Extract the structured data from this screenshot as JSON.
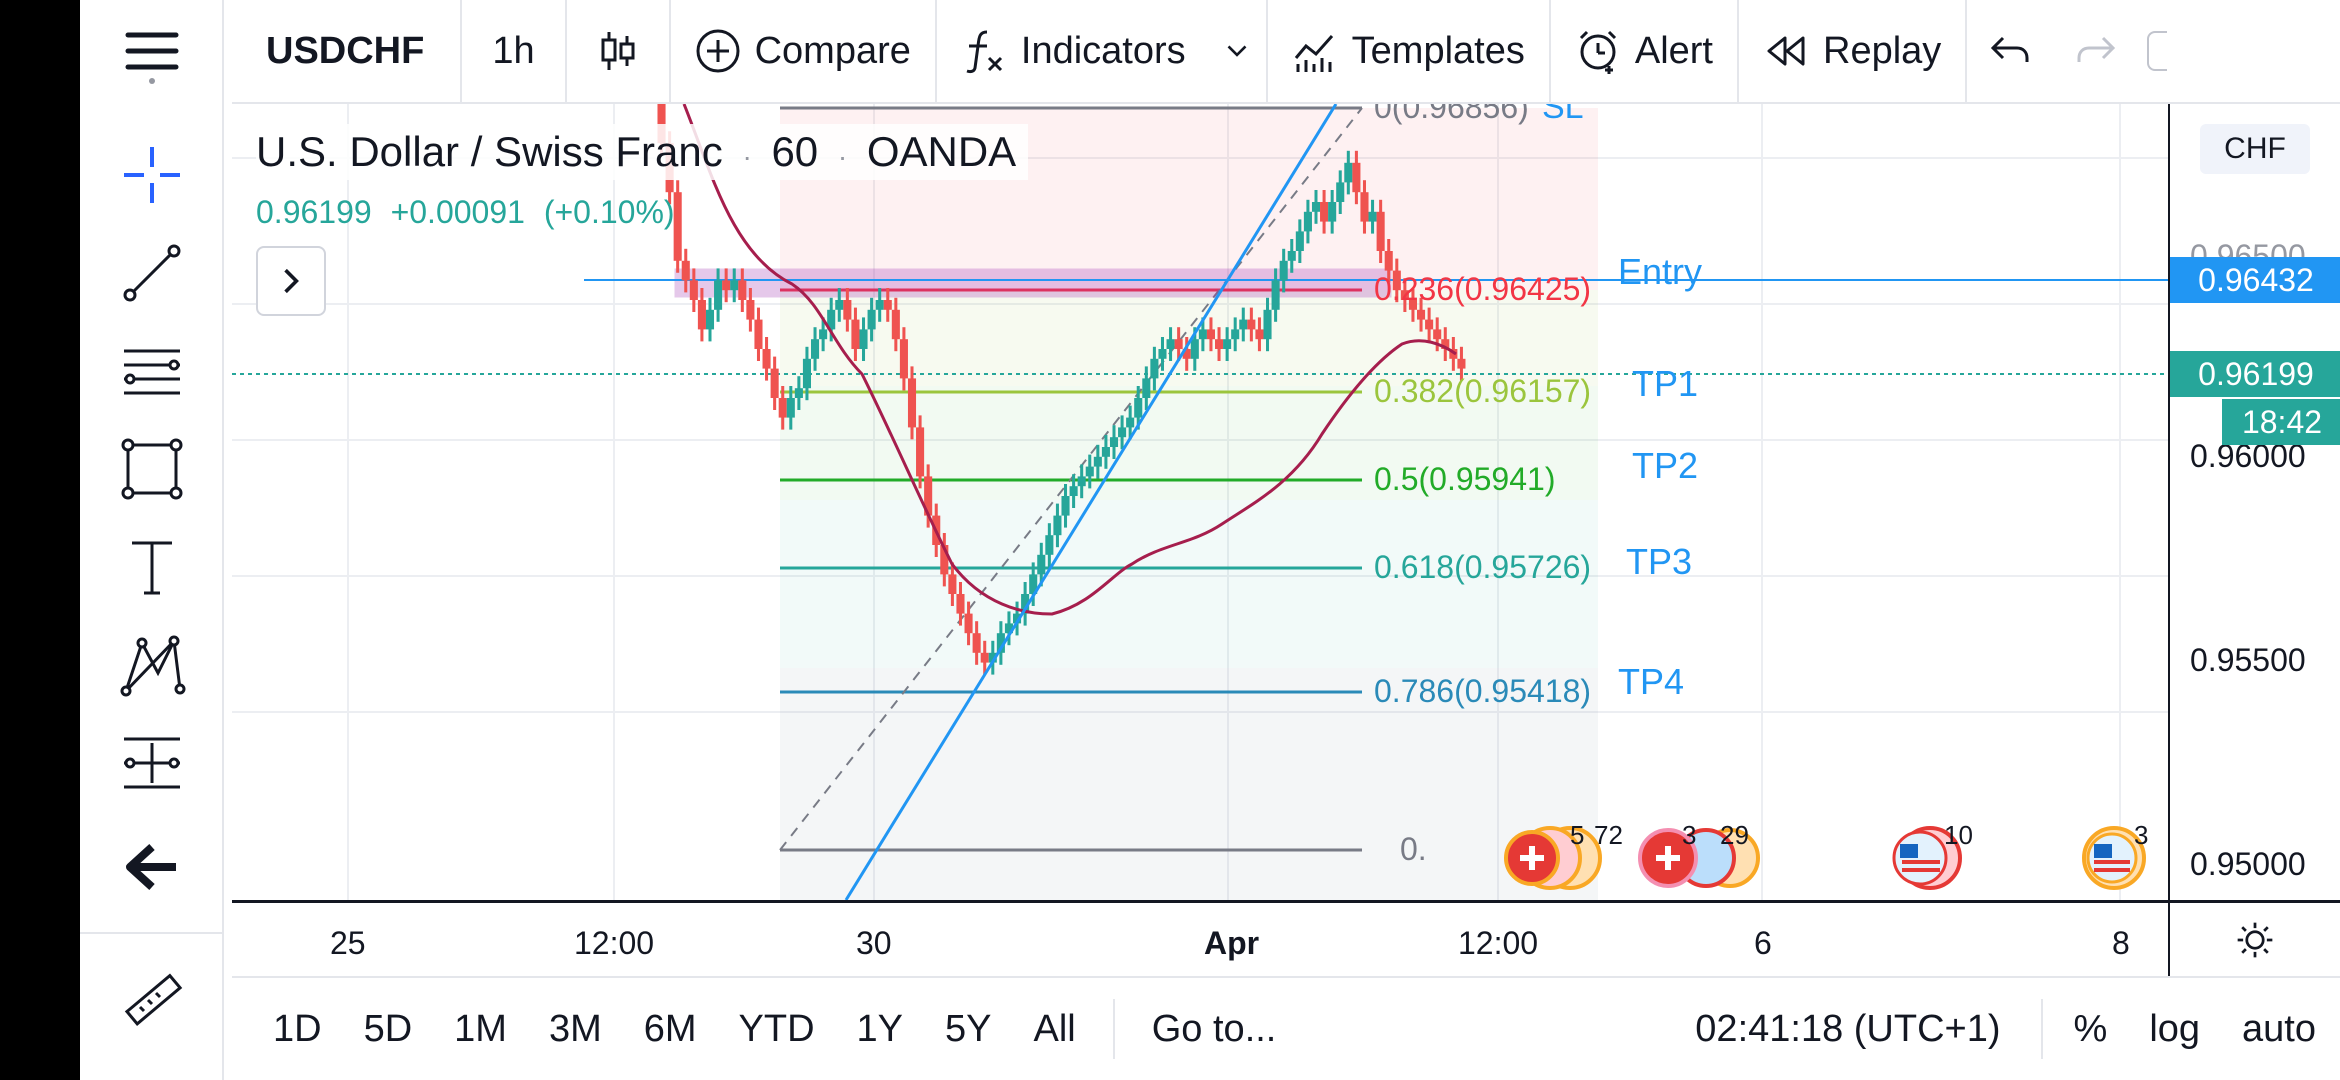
{
  "toolbar": {
    "symbol": "USDCHF",
    "interval": "1h",
    "compare": "Compare",
    "indicators": "Indicators",
    "templates": "Templates",
    "alert": "Alert",
    "replay": "Replay"
  },
  "legend": {
    "name": "U.S. Dollar / Swiss Franc",
    "interval": "60",
    "exchange": "OANDA",
    "sep": "·",
    "last": "0.96199",
    "change": "+0.00091",
    "change_pct": "(+0.10%)"
  },
  "currency": "CHF",
  "price_axis": {
    "ticks": [
      "0.96500",
      "0.96000",
      "0.95500",
      "0.95000"
    ],
    "entry_tag": "0.96432",
    "last_tag": "0.96199",
    "countdown": "18:42",
    "colors": {
      "entry": "#2196f3",
      "last": "#26a69a"
    }
  },
  "time_axis": {
    "ticks": [
      "25",
      "12:00",
      "30",
      "Apr",
      "12:00",
      "6",
      "8"
    ]
  },
  "fib_levels": [
    {
      "label": "0(0.96856)",
      "color": "#787b86"
    },
    {
      "label": "0.236(0.96425)",
      "color": "#f23645"
    },
    {
      "label": "0.382(0.96157)",
      "color": "#9bc53d"
    },
    {
      "label": "0.5(0.95941)",
      "color": "#22ab28"
    },
    {
      "label": "0.618(0.95726)",
      "color": "#26a69a"
    },
    {
      "label": "0.786(0.95418)",
      "color": "#2a8ab8"
    },
    {
      "label": "0.",
      "color": "#787b86"
    }
  ],
  "annotations": {
    "sl": "SL",
    "entry": "Entry",
    "tp1": "TP1",
    "tp2": "TP2",
    "tp3": "TP3",
    "tp4": "TP4",
    "color": "#2196f3"
  },
  "events": [
    {
      "count": "5",
      "extra": "72"
    },
    {
      "count": "3",
      "extra": "29"
    },
    {
      "count": "10"
    },
    {
      "count": "3"
    }
  ],
  "bottom": {
    "ranges": [
      "1D",
      "5D",
      "1M",
      "3M",
      "6M",
      "YTD",
      "1Y",
      "5Y",
      "All"
    ],
    "goto": "Go to...",
    "clock": "02:41:18 (UTC+1)",
    "percent": "%",
    "log": "log",
    "auto": "auto"
  },
  "left_tools": [
    "menu-icon",
    "crosshair-icon",
    "trend-line-icon",
    "fib-levels-icon",
    "rectangle-icon",
    "text-icon",
    "pattern-icon",
    "measure-icon",
    "back-arrow-icon",
    "ruler-icon"
  ]
}
